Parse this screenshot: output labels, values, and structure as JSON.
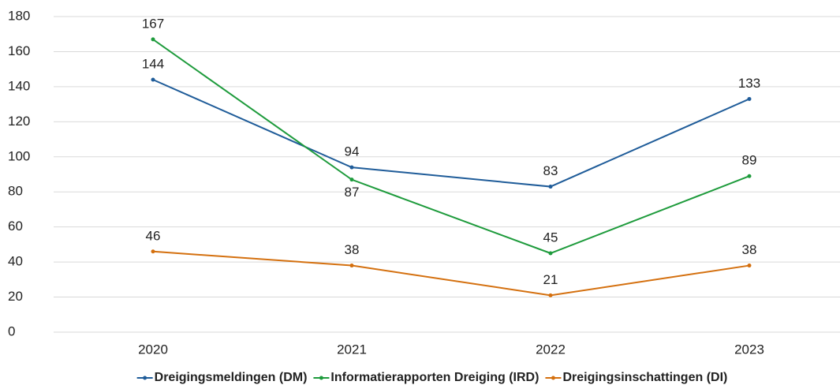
{
  "chart_data": {
    "type": "line",
    "categories": [
      "2020",
      "2021",
      "2022",
      "2023"
    ],
    "series": [
      {
        "name": "Dreigingsmeldingen (DM)",
        "color": "#1f5c99",
        "values": [
          144,
          94,
          83,
          133
        ]
      },
      {
        "name": "Informatierapporten Dreiging (IRD)",
        "color": "#1e9b3c",
        "values": [
          167,
          87,
          45,
          89
        ]
      },
      {
        "name": "Dreigingsinschattingen (DI)",
        "color": "#d4700f",
        "values": [
          46,
          38,
          21,
          38
        ]
      }
    ],
    "ylim": [
      0,
      180
    ],
    "yticks": [
      0,
      20,
      40,
      60,
      80,
      100,
      120,
      140,
      160,
      180
    ],
    "grid": true,
    "legend": "bottom"
  }
}
